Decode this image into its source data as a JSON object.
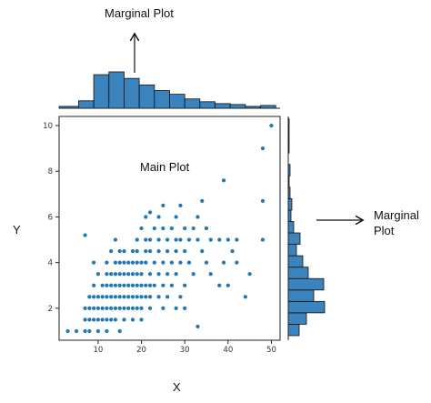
{
  "annotations": {
    "top_marginal": "Marginal Plot",
    "right_marginal_line1": "Marginal",
    "right_marginal_line2": "Plot",
    "main": "Main Plot"
  },
  "colors": {
    "point": "#1f77b4",
    "bar_fill": "#3b83bd",
    "bar_edge": "#111111",
    "axis": "#222222"
  },
  "chart_data": {
    "type": "scatter",
    "xlabel": "X",
    "ylabel": "Y",
    "xlim": [
      1,
      52
    ],
    "ylim": [
      0.6,
      10.4
    ],
    "xticks": [
      10,
      20,
      30,
      40,
      50
    ],
    "yticks": [
      2,
      4,
      6,
      8,
      10
    ],
    "points": [
      [
        3,
        1
      ],
      [
        5,
        1
      ],
      [
        7,
        1
      ],
      [
        8,
        1
      ],
      [
        10,
        1
      ],
      [
        12,
        1
      ],
      [
        15,
        1
      ],
      [
        33,
        1.2
      ],
      [
        7,
        1.5
      ],
      [
        8,
        1.5
      ],
      [
        9,
        1.5
      ],
      [
        10,
        1.5
      ],
      [
        11,
        1.5
      ],
      [
        12,
        1.5
      ],
      [
        13,
        1.5
      ],
      [
        14,
        1.5
      ],
      [
        16,
        1.5
      ],
      [
        18,
        1.5
      ],
      [
        20,
        1.5
      ],
      [
        7,
        2
      ],
      [
        8,
        2
      ],
      [
        9,
        2
      ],
      [
        10,
        2
      ],
      [
        11,
        2
      ],
      [
        12,
        2
      ],
      [
        13,
        2
      ],
      [
        14,
        2
      ],
      [
        15,
        2
      ],
      [
        16,
        2
      ],
      [
        17,
        2
      ],
      [
        18,
        2
      ],
      [
        19,
        2
      ],
      [
        20,
        2
      ],
      [
        22,
        2
      ],
      [
        25,
        2
      ],
      [
        28,
        2
      ],
      [
        30,
        2
      ],
      [
        8,
        2.5
      ],
      [
        9,
        2.5
      ],
      [
        10,
        2.5
      ],
      [
        11,
        2.5
      ],
      [
        12,
        2.5
      ],
      [
        13,
        2.5
      ],
      [
        14,
        2.5
      ],
      [
        15,
        2.5
      ],
      [
        16,
        2.5
      ],
      [
        17,
        2.5
      ],
      [
        18,
        2.5
      ],
      [
        19,
        2.5
      ],
      [
        20,
        2.5
      ],
      [
        21,
        2.5
      ],
      [
        22,
        2.5
      ],
      [
        24,
        2.5
      ],
      [
        26,
        2.5
      ],
      [
        29,
        2.5
      ],
      [
        44,
        2.5
      ],
      [
        9,
        3
      ],
      [
        11,
        3
      ],
      [
        12,
        3
      ],
      [
        13,
        3
      ],
      [
        14,
        3
      ],
      [
        15,
        3
      ],
      [
        16,
        3
      ],
      [
        17,
        3
      ],
      [
        18,
        3
      ],
      [
        19,
        3
      ],
      [
        20,
        3
      ],
      [
        21,
        3
      ],
      [
        22,
        3
      ],
      [
        23,
        3
      ],
      [
        25,
        3
      ],
      [
        27,
        3
      ],
      [
        30,
        3
      ],
      [
        38,
        3
      ],
      [
        40,
        3
      ],
      [
        10,
        3.5
      ],
      [
        12,
        3.5
      ],
      [
        13,
        3.5
      ],
      [
        14,
        3.5
      ],
      [
        15,
        3.5
      ],
      [
        16,
        3.5
      ],
      [
        17,
        3.5
      ],
      [
        18,
        3.5
      ],
      [
        19,
        3.5
      ],
      [
        20,
        3.5
      ],
      [
        22,
        3.5
      ],
      [
        24,
        3.5
      ],
      [
        26,
        3.5
      ],
      [
        28,
        3.5
      ],
      [
        32,
        3.5
      ],
      [
        36,
        3.5
      ],
      [
        45,
        3.5
      ],
      [
        9,
        4
      ],
      [
        12,
        4
      ],
      [
        14,
        4
      ],
      [
        15,
        4
      ],
      [
        16,
        4
      ],
      [
        17,
        4
      ],
      [
        18,
        4
      ],
      [
        19,
        4
      ],
      [
        20,
        4
      ],
      [
        21,
        4
      ],
      [
        23,
        4
      ],
      [
        25,
        4
      ],
      [
        27,
        4
      ],
      [
        29,
        4
      ],
      [
        31,
        4
      ],
      [
        35,
        4
      ],
      [
        39,
        4
      ],
      [
        42,
        4
      ],
      [
        13,
        4.5
      ],
      [
        15,
        4.5
      ],
      [
        16,
        4.5
      ],
      [
        18,
        4.5
      ],
      [
        19,
        4.5
      ],
      [
        21,
        4.5
      ],
      [
        22,
        4.5
      ],
      [
        24,
        4.5
      ],
      [
        26,
        4.5
      ],
      [
        28,
        4.5
      ],
      [
        30,
        4.5
      ],
      [
        34,
        4.5
      ],
      [
        41,
        4.5
      ],
      [
        7,
        5.2
      ],
      [
        14,
        5
      ],
      [
        19,
        5
      ],
      [
        21,
        5
      ],
      [
        22,
        5
      ],
      [
        24,
        5
      ],
      [
        26,
        5
      ],
      [
        28,
        5
      ],
      [
        29,
        5
      ],
      [
        31,
        5
      ],
      [
        33,
        5
      ],
      [
        36,
        5
      ],
      [
        38,
        5
      ],
      [
        40,
        5
      ],
      [
        42,
        5
      ],
      [
        48,
        5
      ],
      [
        20,
        5.5
      ],
      [
        23,
        5.5
      ],
      [
        25,
        5.5
      ],
      [
        27,
        5.5
      ],
      [
        30,
        5.5
      ],
      [
        32,
        5.5
      ],
      [
        35,
        5.5
      ],
      [
        21,
        6
      ],
      [
        24,
        6
      ],
      [
        28,
        6
      ],
      [
        33,
        6
      ],
      [
        22,
        6.2
      ],
      [
        25,
        6.5
      ],
      [
        29,
        6.5
      ],
      [
        34,
        6.7
      ],
      [
        39,
        7.6
      ],
      [
        48,
        6.7
      ],
      [
        48,
        9
      ],
      [
        50,
        10
      ]
    ],
    "x_marginal_hist": {
      "bin_edges": [
        1,
        5.5,
        9,
        12.5,
        16,
        19.5,
        23,
        26.5,
        30,
        33.5,
        37,
        40.5,
        44,
        47.5,
        51
      ],
      "counts": [
        2,
        8,
        36,
        39,
        32,
        25,
        19,
        15,
        10,
        7,
        5,
        4,
        2,
        3
      ]
    },
    "y_marginal_hist": {
      "bin_edges": [
        0.8,
        1.3,
        1.8,
        2.3,
        2.8,
        3.3,
        3.8,
        4.3,
        4.8,
        5.3,
        5.8,
        6.3,
        6.8,
        7.3,
        7.8,
        8.3,
        8.8,
        9.3,
        9.8,
        10.3
      ],
      "counts": [
        12,
        20,
        40,
        28,
        39,
        22,
        16,
        9,
        13,
        6,
        3,
        4,
        2,
        1,
        2,
        0,
        1,
        1,
        1
      ]
    }
  }
}
